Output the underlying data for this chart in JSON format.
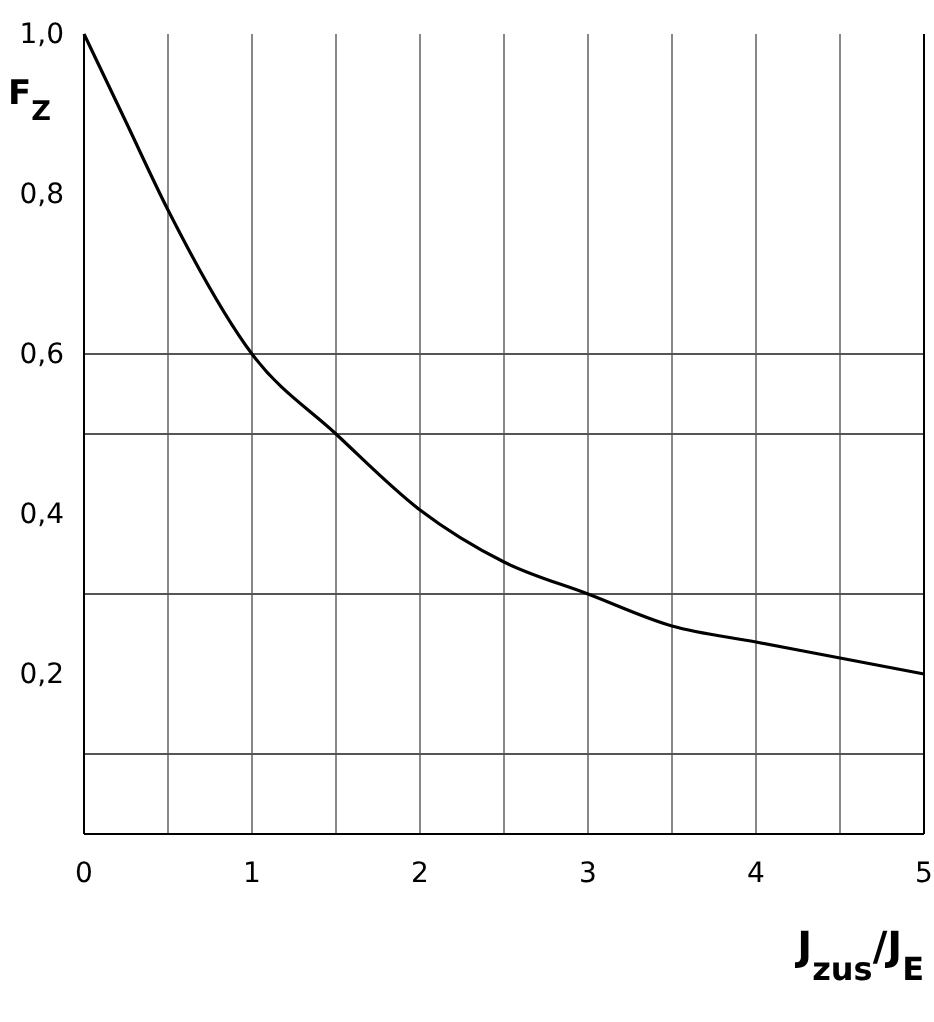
{
  "chart_data": {
    "type": "line",
    "xlabel": "J$_{zus}$/J$_{E}$",
    "ylabel": "F$_{Z}$",
    "x": [
      0,
      0.25,
      0.5,
      1,
      1.5,
      2,
      2.5,
      3,
      3.5,
      4,
      4.5,
      5
    ],
    "series": [
      {
        "color": "#000000",
        "values": [
          1.0,
          0.89,
          0.78,
          0.6,
          0.5,
          0.405,
          0.34,
          0.3,
          0.26,
          0.24,
          0.22,
          0.2
        ]
      }
    ],
    "xlim": [
      0,
      5
    ],
    "ylim": [
      0,
      1
    ],
    "xticks": [
      0,
      {
        "value": 0.5,
        "label": null
      },
      1,
      {
        "value": 1.5,
        "label": null
      },
      2,
      {
        "value": 2.5,
        "label": null
      },
      3,
      {
        "value": 3.5,
        "label": null
      },
      4,
      {
        "value": 4.5,
        "label": null
      },
      5
    ],
    "yticks": [
      {
        "value": 0.2,
        "label": "0,2"
      },
      {
        "value": 0.4,
        "label": "0,4"
      },
      {
        "value": 0.6,
        "label": "0,6"
      },
      {
        "value": 0.8,
        "label": "0,8"
      },
      {
        "value": 1.0,
        "label": "1,0"
      }
    ],
    "grid": "x",
    "marker": "none",
    "line_style": "solid",
    "ref_lines": [
      {
        "axis": "y",
        "value": 0.1
      },
      {
        "axis": "y",
        "value": 0.3
      },
      {
        "axis": "y",
        "value": 0.5
      },
      {
        "axis": "y",
        "value": 0.6
      }
    ]
  }
}
